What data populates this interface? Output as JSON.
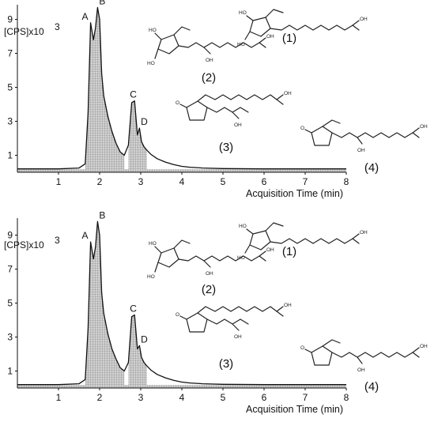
{
  "chart_data": [
    {
      "type": "area",
      "panel": "top",
      "y_unit_label": "[CPS]x10",
      "y_unit_exponent": "3",
      "xlabel": "Acquisition Time (min)",
      "xlim": [
        0,
        8
      ],
      "ylim": [
        0,
        10
      ],
      "x_ticks": [
        "1",
        "2",
        "3",
        "4",
        "5",
        "6",
        "7",
        "8"
      ],
      "y_ticks": [
        "1",
        "3",
        "5",
        "7",
        "9"
      ],
      "trace": {
        "x": [
          0.0,
          1.0,
          1.5,
          1.65,
          1.72,
          1.78,
          1.85,
          1.9,
          1.95,
          2.0,
          2.05,
          2.1,
          2.2,
          2.3,
          2.4,
          2.5,
          2.6,
          2.7,
          2.78,
          2.85,
          2.92,
          2.97,
          3.02,
          3.08,
          3.15,
          3.25,
          3.4,
          3.6,
          3.8,
          4.0,
          4.2,
          4.5,
          5.0,
          6.0,
          7.0,
          8.0
        ],
        "y": [
          0.2,
          0.2,
          0.25,
          0.5,
          3.5,
          8.8,
          7.8,
          8.5,
          9.7,
          9.0,
          5.8,
          4.5,
          3.3,
          2.4,
          1.7,
          1.2,
          1.0,
          1.6,
          4.1,
          4.2,
          2.2,
          2.6,
          1.8,
          1.5,
          1.3,
          1.05,
          0.8,
          0.6,
          0.45,
          0.35,
          0.3,
          0.25,
          0.22,
          0.2,
          0.2,
          0.2
        ]
      },
      "peaks": [
        {
          "label": "A",
          "x": 1.78,
          "y": 8.8
        },
        {
          "label": "B",
          "x": 1.95,
          "y": 9.7
        },
        {
          "label": "C",
          "x": 2.82,
          "y": 4.2
        },
        {
          "label": "D",
          "x": 2.97,
          "y": 2.6
        }
      ],
      "compounds": [
        "(1)",
        "(2)",
        "(3)",
        "(4)"
      ]
    },
    {
      "type": "area",
      "panel": "bottom",
      "y_unit_label": "[CPS]x10",
      "y_unit_exponent": "3",
      "xlabel": "Acquisition Time (min)",
      "xlim": [
        0,
        8
      ],
      "ylim": [
        0,
        10
      ],
      "x_ticks": [
        "1",
        "2",
        "3",
        "4",
        "5",
        "6",
        "7",
        "8"
      ],
      "y_ticks": [
        "1",
        "3",
        "5",
        "7",
        "9"
      ],
      "trace": {
        "x": [
          0.0,
          1.0,
          1.5,
          1.65,
          1.72,
          1.78,
          1.85,
          1.9,
          1.95,
          2.0,
          2.05,
          2.1,
          2.2,
          2.3,
          2.4,
          2.5,
          2.6,
          2.7,
          2.78,
          2.85,
          2.92,
          2.97,
          3.02,
          3.08,
          3.15,
          3.25,
          3.4,
          3.6,
          3.8,
          4.0,
          4.2,
          4.5,
          5.0,
          6.0,
          7.0,
          8.0
        ],
        "y": [
          0.2,
          0.2,
          0.25,
          0.5,
          3.5,
          8.6,
          7.6,
          8.3,
          9.8,
          9.0,
          5.6,
          4.4,
          3.2,
          2.3,
          1.7,
          1.2,
          1.0,
          1.5,
          4.2,
          4.3,
          2.3,
          2.5,
          1.8,
          1.5,
          1.3,
          1.05,
          0.8,
          0.6,
          0.45,
          0.35,
          0.3,
          0.25,
          0.22,
          0.2,
          0.2,
          0.2
        ]
      },
      "peaks": [
        {
          "label": "A",
          "x": 1.78,
          "y": 8.6
        },
        {
          "label": "B",
          "x": 1.95,
          "y": 9.8
        },
        {
          "label": "C",
          "x": 2.82,
          "y": 4.3
        },
        {
          "label": "D",
          "x": 2.97,
          "y": 2.5
        }
      ],
      "compounds": [
        "(1)",
        "(2)",
        "(3)",
        "(4)"
      ]
    }
  ],
  "atoms": {
    "ho": "HO",
    "oh": "OH",
    "o": "O"
  },
  "colors": {
    "axis": "#111111",
    "trace": "#111111",
    "fill": "#b9b9b9"
  }
}
